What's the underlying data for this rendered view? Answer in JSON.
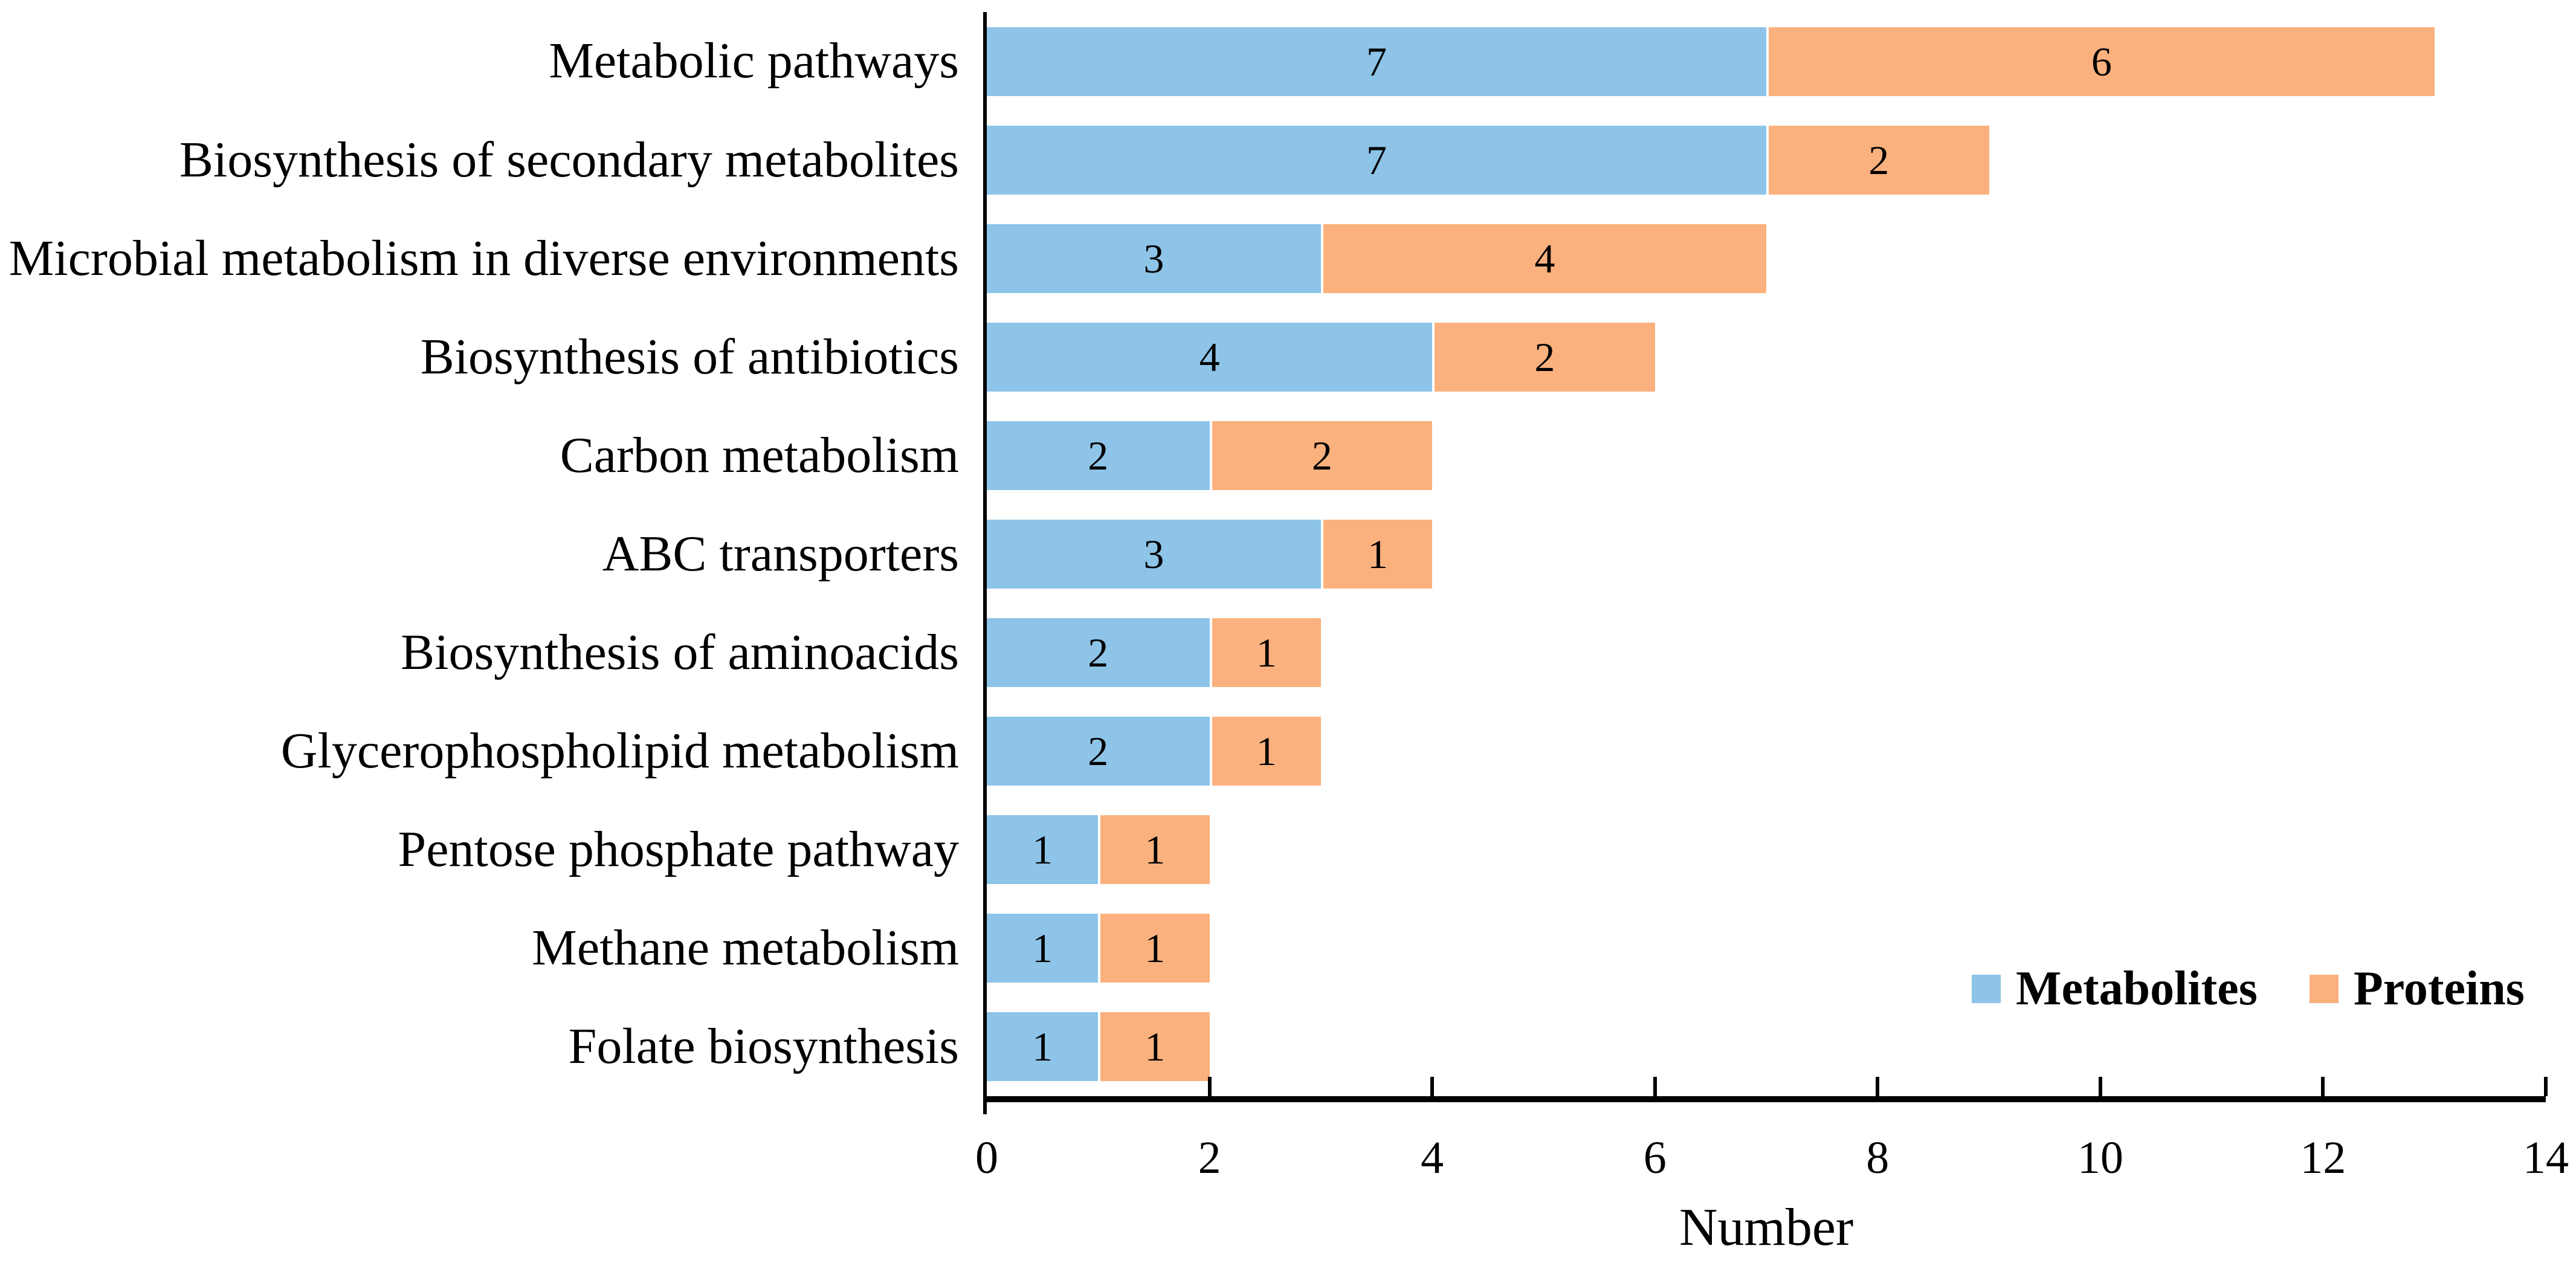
{
  "chart_data": {
    "type": "bar",
    "orientation": "horizontal",
    "stacked": true,
    "title": "",
    "xlabel": "Number",
    "ylabel": "",
    "xlim": [
      0,
      14
    ],
    "xticks": [
      0,
      2,
      4,
      6,
      8,
      10,
      12,
      14
    ],
    "grid": false,
    "legend_position": "inside-lower-right",
    "categories": [
      "Metabolic pathways",
      "Biosynthesis of secondary metabolites",
      "Microbial metabolism in diverse environments",
      "Biosynthesis of antibiotics",
      "Carbon metabolism",
      "ABC transporters",
      "Biosynthesis of aminoacids",
      "Glycerophospholipid metabolism",
      "Pentose phosphate pathway",
      "Methane metabolism",
      "Folate biosynthesis"
    ],
    "series": [
      {
        "name": "Metabolites",
        "color": "#8DC4E8",
        "values": [
          7,
          7,
          3,
          4,
          2,
          3,
          2,
          2,
          1,
          1,
          1
        ]
      },
      {
        "name": "Proteins",
        "color": "#FBB17D",
        "values": [
          6,
          2,
          4,
          2,
          2,
          1,
          1,
          1,
          1,
          1,
          1
        ]
      }
    ],
    "bar_value_labels_shown": true,
    "value_label_color": "#000000",
    "axis_color": "#000000",
    "background_color": "#ffffff"
  },
  "legend": {
    "items": [
      {
        "label": "Metabolites",
        "color": "#8DC4E8"
      },
      {
        "label": "Proteins",
        "color": "#FBB17D"
      }
    ]
  }
}
